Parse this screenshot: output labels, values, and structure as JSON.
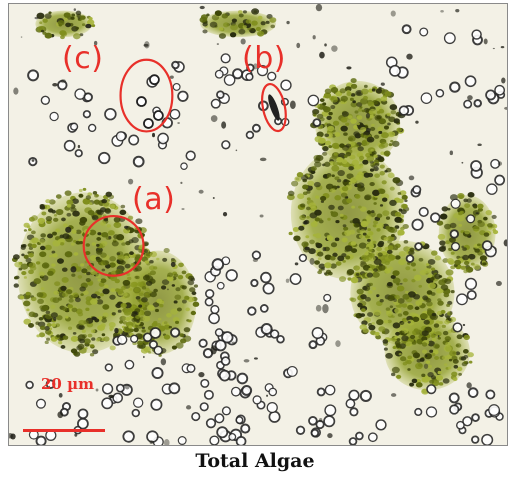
{
  "figure": {
    "caption": "Total Algae",
    "scale_label": "20 µm",
    "annotation_color": "#e8302a",
    "labels": {
      "a": "(a)",
      "b": "(b)",
      "c": "(c)"
    }
  }
}
